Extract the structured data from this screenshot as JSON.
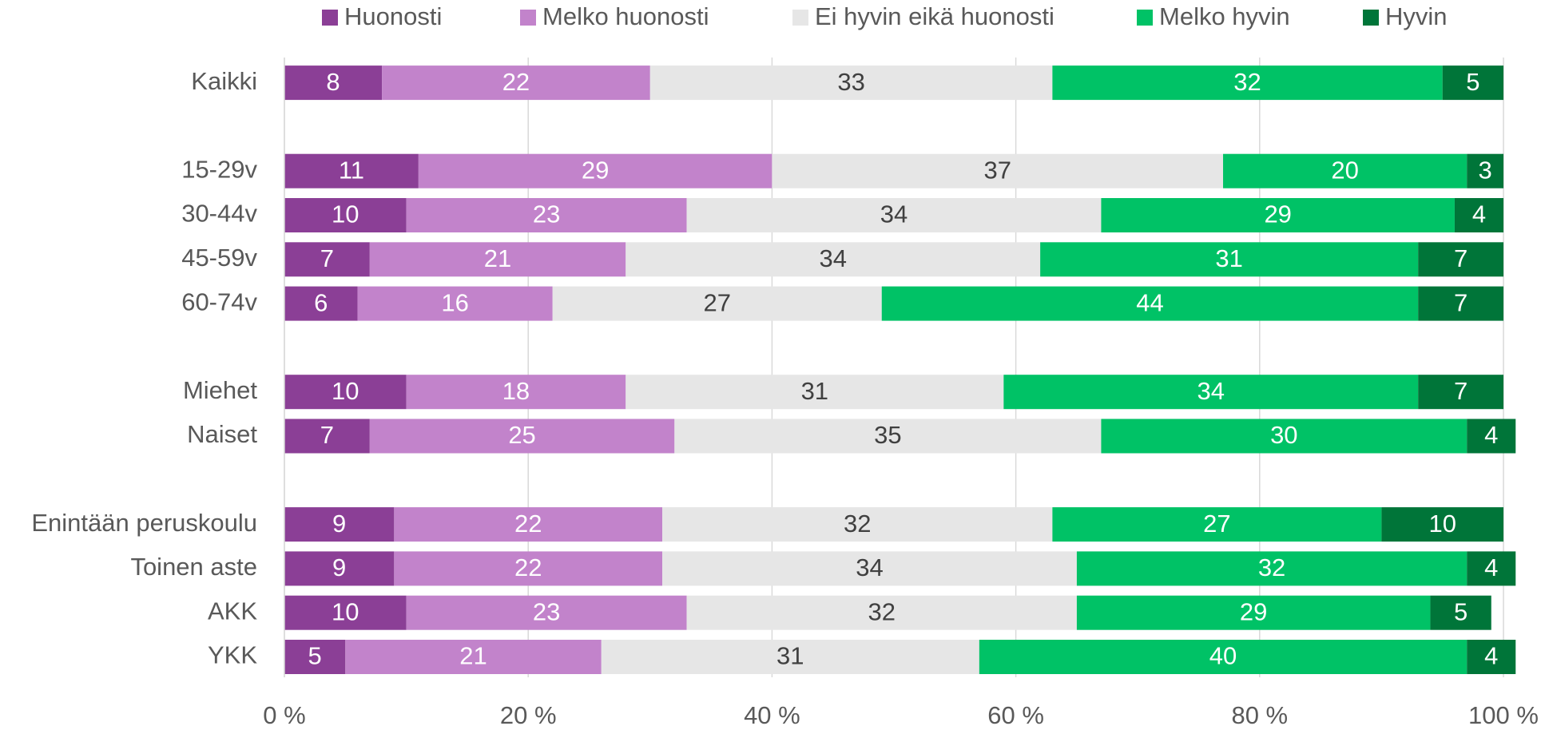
{
  "chart_data": {
    "type": "stacked_barh",
    "categories": [
      "Kaikki",
      null,
      "15-29v",
      "30-44v",
      "45-59v",
      "60-74v",
      null,
      "Miehet",
      "Naiset",
      null,
      "Enintään peruskoulu",
      "Toinen aste",
      "AKK",
      "YKK"
    ],
    "series": [
      {
        "name": "Huonosti",
        "color": "#8b3f96",
        "label_color": "#ffffff",
        "values": [
          8,
          null,
          11,
          10,
          7,
          6,
          null,
          10,
          7,
          null,
          9,
          9,
          10,
          5
        ]
      },
      {
        "name": "Melko huonosti",
        "color": "#c283cb",
        "label_color": "#ffffff",
        "values": [
          22,
          null,
          29,
          23,
          21,
          16,
          null,
          18,
          25,
          null,
          22,
          22,
          23,
          21
        ]
      },
      {
        "name": "Ei hyvin eikä huonosti",
        "color": "#e6e6e6",
        "label_color": "#404040",
        "values": [
          33,
          null,
          37,
          34,
          34,
          27,
          null,
          31,
          35,
          null,
          32,
          34,
          32,
          31
        ]
      },
      {
        "name": "Melko hyvin",
        "color": "#00c266",
        "label_color": "#ffffff",
        "values": [
          32,
          null,
          20,
          29,
          31,
          44,
          null,
          34,
          30,
          null,
          27,
          32,
          29,
          40
        ]
      },
      {
        "name": "Hyvin",
        "color": "#007539",
        "label_color": "#ffffff",
        "values": [
          5,
          null,
          3,
          4,
          7,
          7,
          null,
          7,
          4,
          null,
          10,
          4,
          5,
          4
        ]
      }
    ],
    "xlim": [
      0,
      100
    ],
    "xticks": [
      {
        "value": 0,
        "label": "0 %"
      },
      {
        "value": 20,
        "label": "20 %"
      },
      {
        "value": 40,
        "label": "40 %"
      },
      {
        "value": 60,
        "label": "60 %"
      },
      {
        "value": 80,
        "label": "80 %"
      },
      {
        "value": 100,
        "label": "100 %"
      }
    ],
    "grid": true,
    "legend": "top"
  }
}
